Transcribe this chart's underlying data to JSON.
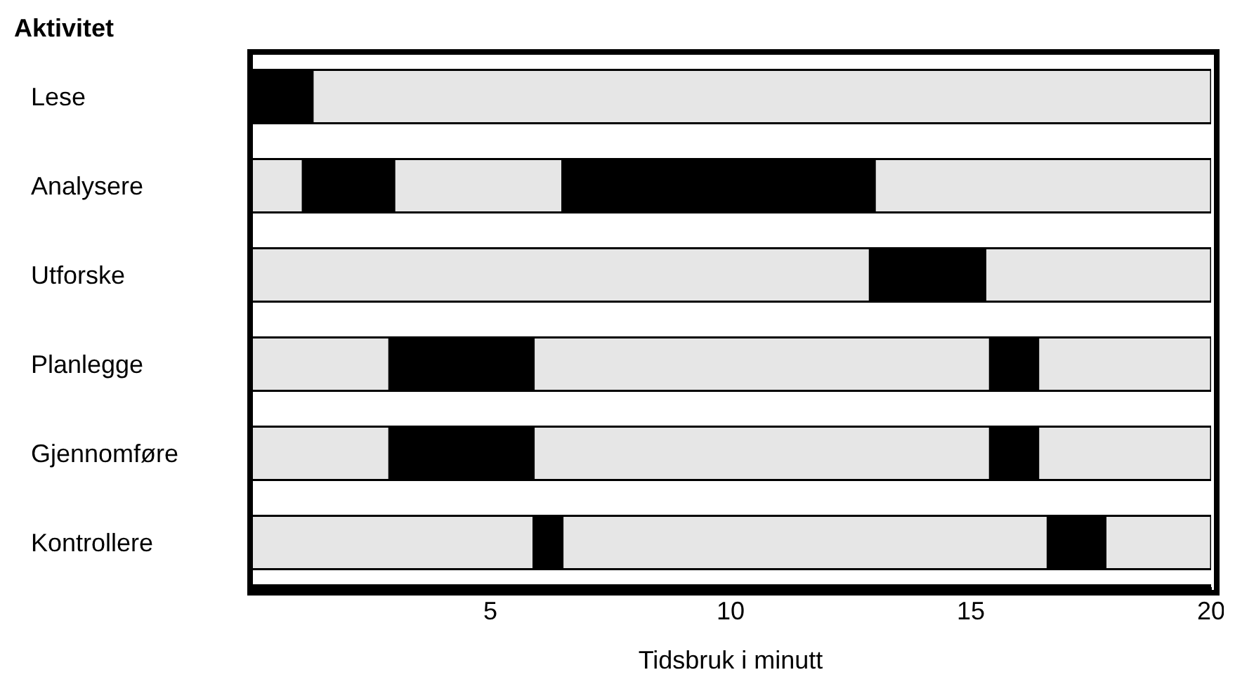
{
  "chart_data": {
    "type": "bar",
    "orientation": "horizontal",
    "stacked": true,
    "ylabel": "Aktivitet",
    "xlabel": "Tidsbruk i minutt",
    "categories": [
      "Lese",
      "Analysere",
      "Utforske",
      "Planlegge",
      "Gjennomføre",
      "Kontrollere"
    ],
    "series": [
      {
        "colors": [
          "#000000",
          "#e6e6e6",
          "#e6e6e6",
          "#e6e6e6",
          "#e6e6e6",
          "#e6e6e6"
        ],
        "values": [
          1.3,
          1.1,
          12.9,
          2.9,
          2.9,
          5.9
        ]
      },
      {
        "colors": [
          "#e6e6e6",
          "#000000",
          "#000000",
          "#000000",
          "#000000",
          "#000000"
        ],
        "values": [
          18.7,
          1.9,
          2.4,
          3.0,
          3.0,
          0.6
        ]
      },
      {
        "colors": [
          null,
          "#e6e6e6",
          "#e6e6e6",
          "#e6e6e6",
          "#e6e6e6",
          "#e6e6e6"
        ],
        "values": [
          null,
          3.5,
          4.7,
          9.5,
          9.5,
          10.1
        ]
      },
      {
        "colors": [
          null,
          "#000000",
          null,
          "#000000",
          "#000000",
          "#000000"
        ],
        "values": [
          null,
          6.5,
          null,
          1.0,
          1.0,
          1.2
        ]
      },
      {
        "colors": [
          null,
          "#e6e6e6",
          null,
          "#e6e6e6",
          "#e6e6e6",
          "#e6e6e6"
        ],
        "values": [
          null,
          7.0,
          null,
          3.6,
          3.6,
          2.2
        ]
      }
    ],
    "xlim": [
      0,
      20
    ],
    "xticks": [
      5,
      10,
      15,
      20
    ],
    "grid": false,
    "legend": false
  }
}
